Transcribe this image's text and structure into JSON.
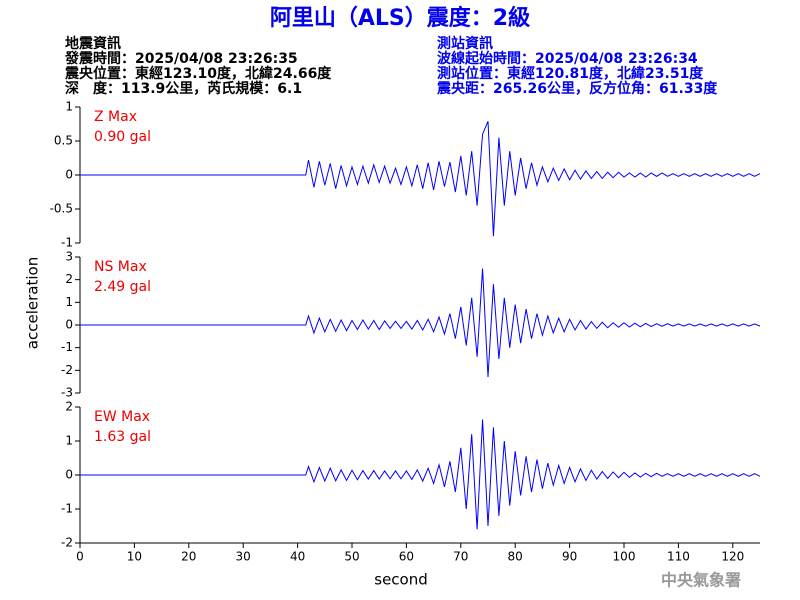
{
  "title": "阿里山（ALS）震度：2級",
  "event_info": [
    "地震資訊",
    "發震時間：2025/04/08 23:26:35",
    "震央位置：東經123.10度，北緯24.66度",
    "深　度：113.9公里，芮氏規模：6.1"
  ],
  "station_info": [
    "測站資訊",
    "波線起始時間：2025/04/08 23:26:34",
    "測站位置：東經120.81度，北緯23.51度",
    "震央距：265.26公里，反方位角：61.33度"
  ],
  "x_label": "second",
  "y_label": "acceleration",
  "footer": "中央氣象署",
  "chart_data": [
    {
      "type": "line",
      "annotations": [
        "Z Max",
        "0.90 gal"
      ],
      "annotation_color": "#ee0000",
      "x": [
        0,
        41.5,
        42,
        43,
        44,
        45,
        46,
        47,
        48,
        49,
        50,
        51,
        52,
        53,
        54,
        55,
        56,
        57,
        58,
        59,
        60,
        61,
        62,
        63,
        64,
        65,
        66,
        67,
        68,
        69,
        70,
        71,
        72,
        73,
        74,
        75,
        76,
        77,
        78,
        79,
        80,
        81,
        82,
        83,
        84,
        85,
        86,
        87,
        88,
        89,
        90,
        91,
        92,
        93,
        94,
        95,
        96,
        97,
        98,
        99,
        100,
        101,
        102,
        103,
        104,
        105,
        106,
        107,
        108,
        109,
        110,
        111,
        112,
        113,
        114,
        115,
        116,
        117,
        118,
        119,
        120,
        121,
        122,
        123,
        124,
        125
      ],
      "series": [
        {
          "color": "#0000ff",
          "values": [
            0,
            0,
            0.22,
            -0.18,
            0.2,
            -0.15,
            0.17,
            -0.2,
            0.14,
            -0.16,
            0.12,
            -0.14,
            0.13,
            -0.12,
            0.15,
            -0.11,
            0.13,
            -0.12,
            0.1,
            -0.14,
            0.12,
            -0.16,
            0.15,
            -0.2,
            0.18,
            -0.22,
            0.2,
            -0.17,
            0.19,
            -0.25,
            0.28,
            -0.3,
            0.35,
            -0.45,
            0.6,
            0.79,
            -0.9,
            0.55,
            -0.45,
            0.35,
            -0.3,
            0.25,
            -0.2,
            0.18,
            -0.15,
            0.12,
            -0.1,
            0.1,
            -0.08,
            0.09,
            -0.07,
            0.07,
            -0.06,
            0.06,
            -0.05,
            0.05,
            -0.05,
            0.04,
            -0.04,
            0.04,
            -0.03,
            0.03,
            -0.03,
            0.03,
            -0.03,
            0.03,
            -0.02,
            0.03,
            -0.02,
            0.02,
            -0.02,
            0.02,
            -0.02,
            0.02,
            -0.02,
            0.02,
            -0.02,
            0.02,
            -0.02,
            0.02,
            -0.02,
            0.02,
            -0.02,
            0.02,
            -0.02,
            0.02
          ]
        }
      ],
      "xlim": [
        0,
        125
      ],
      "ylim": [
        -1,
        1
      ],
      "yticks": [
        -1,
        -0.5,
        0,
        0.5,
        1
      ]
    },
    {
      "type": "line",
      "annotations": [
        "NS Max",
        "2.49 gal"
      ],
      "annotation_color": "#ee0000",
      "x": [
        0,
        41.5,
        42,
        43,
        44,
        45,
        46,
        47,
        48,
        49,
        50,
        51,
        52,
        53,
        54,
        55,
        56,
        57,
        58,
        59,
        60,
        61,
        62,
        63,
        64,
        65,
        66,
        67,
        68,
        69,
        70,
        71,
        72,
        73,
        74,
        75,
        76,
        77,
        78,
        79,
        80,
        81,
        82,
        83,
        84,
        85,
        86,
        87,
        88,
        89,
        90,
        91,
        92,
        93,
        94,
        95,
        96,
        97,
        98,
        99,
        100,
        101,
        102,
        103,
        104,
        105,
        106,
        107,
        108,
        109,
        110,
        111,
        112,
        113,
        114,
        115,
        116,
        117,
        118,
        119,
        120,
        121,
        122,
        123,
        124,
        125
      ],
      "series": [
        {
          "color": "#0000ff",
          "values": [
            0,
            0,
            0.4,
            -0.35,
            0.3,
            -0.3,
            0.25,
            -0.28,
            0.22,
            -0.25,
            0.2,
            -0.2,
            0.22,
            -0.18,
            0.2,
            -0.2,
            0.18,
            -0.15,
            0.17,
            -0.15,
            0.16,
            -0.18,
            0.2,
            -0.22,
            0.25,
            -0.3,
            0.35,
            -0.4,
            0.5,
            -0.6,
            0.8,
            -0.9,
            1.2,
            -1.4,
            2.49,
            -2.3,
            1.8,
            -1.5,
            1.2,
            -1.0,
            0.9,
            -0.8,
            0.7,
            -0.6,
            0.5,
            -0.45,
            0.4,
            -0.35,
            0.3,
            -0.3,
            0.25,
            -0.22,
            0.2,
            -0.18,
            0.15,
            -0.15,
            0.12,
            -0.12,
            0.1,
            -0.1,
            0.1,
            -0.09,
            0.08,
            -0.08,
            0.07,
            -0.07,
            0.06,
            -0.06,
            0.06,
            -0.05,
            0.05,
            -0.05,
            0.05,
            -0.05,
            0.05,
            -0.05,
            0.05,
            -0.05,
            0.05,
            -0.05,
            0.05,
            -0.05,
            0.05,
            -0.05,
            0.05,
            -0.05
          ]
        }
      ],
      "xlim": [
        0,
        125
      ],
      "ylim": [
        -3,
        3
      ],
      "yticks": [
        -3,
        -2,
        -1,
        0,
        1,
        2,
        3
      ]
    },
    {
      "type": "line",
      "annotations": [
        "EW Max",
        "1.63 gal"
      ],
      "annotation_color": "#ee0000",
      "x": [
        0,
        41.5,
        42,
        43,
        44,
        45,
        46,
        47,
        48,
        49,
        50,
        51,
        52,
        53,
        54,
        55,
        56,
        57,
        58,
        59,
        60,
        61,
        62,
        63,
        64,
        65,
        66,
        67,
        68,
        69,
        70,
        71,
        72,
        73,
        74,
        75,
        76,
        77,
        78,
        79,
        80,
        81,
        82,
        83,
        84,
        85,
        86,
        87,
        88,
        89,
        90,
        91,
        92,
        93,
        94,
        95,
        96,
        97,
        98,
        99,
        100,
        101,
        102,
        103,
        104,
        105,
        106,
        107,
        108,
        109,
        110,
        111,
        112,
        113,
        114,
        115,
        116,
        117,
        118,
        119,
        120,
        121,
        122,
        123,
        124,
        125
      ],
      "series": [
        {
          "color": "#0000ff",
          "values": [
            0,
            0,
            0.25,
            -0.2,
            0.22,
            -0.18,
            0.2,
            -0.17,
            0.15,
            -0.16,
            0.14,
            -0.14,
            0.13,
            -0.12,
            0.13,
            -0.12,
            0.12,
            -0.11,
            0.12,
            -0.11,
            0.12,
            -0.13,
            0.15,
            -0.18,
            0.2,
            -0.25,
            0.3,
            -0.35,
            0.4,
            -0.5,
            0.8,
            -1.0,
            1.2,
            -1.6,
            1.63,
            -1.5,
            1.4,
            -1.2,
            1.0,
            -0.9,
            0.7,
            -0.6,
            0.55,
            -0.5,
            0.45,
            -0.4,
            0.35,
            -0.3,
            0.28,
            -0.25,
            0.22,
            -0.2,
            0.18,
            -0.16,
            0.14,
            -0.12,
            0.1,
            -0.1,
            0.09,
            -0.08,
            0.08,
            -0.07,
            0.06,
            -0.06,
            0.05,
            -0.05,
            0.05,
            -0.04,
            0.04,
            -0.04,
            0.04,
            -0.04,
            0.04,
            -0.04,
            0.04,
            -0.04,
            0.04,
            -0.04,
            0.04,
            -0.04,
            0.04,
            -0.04,
            0.04,
            -0.04,
            0.04,
            -0.04
          ]
        }
      ],
      "xlim": [
        0,
        125
      ],
      "ylim": [
        -2,
        2
      ],
      "yticks": [
        -2,
        -1,
        0,
        1,
        2
      ],
      "xticks": [
        0,
        10,
        20,
        30,
        40,
        50,
        60,
        70,
        80,
        90,
        100,
        110,
        120
      ]
    }
  ]
}
